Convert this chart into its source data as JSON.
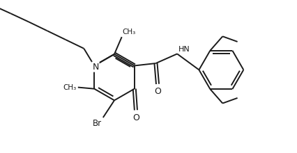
{
  "line_color": "#1a1a1a",
  "bg_color": "#ffffff",
  "line_width": 1.4,
  "figsize": [
    4.26,
    2.2
  ],
  "dpi": 100,
  "xlim": [
    0,
    10
  ],
  "ylim": [
    0,
    5.15
  ]
}
